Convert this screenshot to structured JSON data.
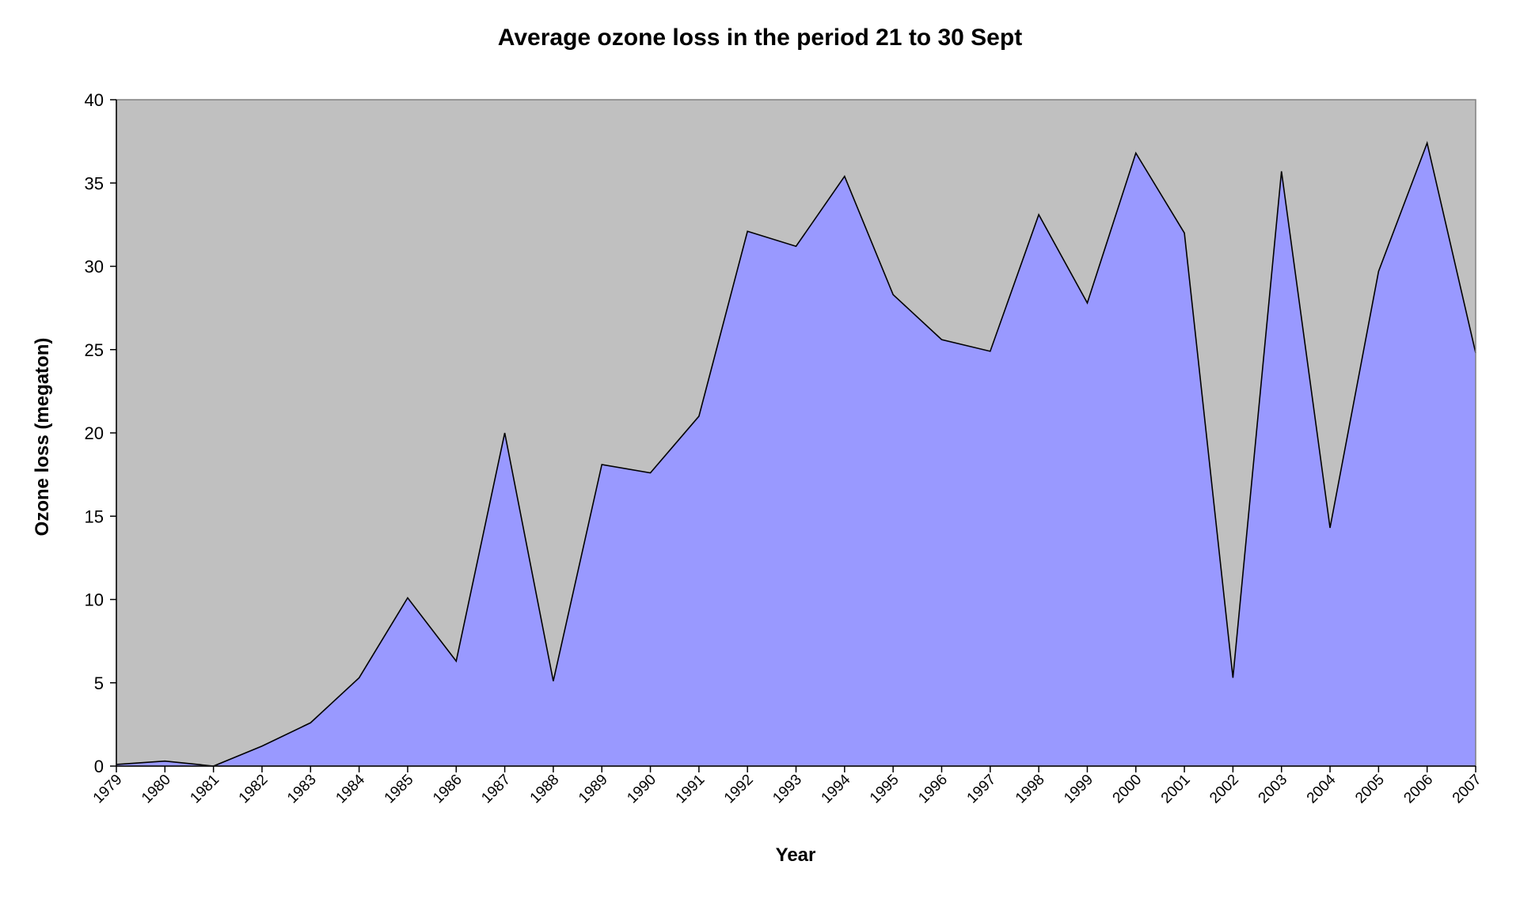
{
  "chart_data": {
    "type": "area",
    "title": "Average ozone loss in the period 21 to 30 Sept",
    "xlabel": "Year",
    "ylabel": "Ozone loss (megaton)",
    "ylim": [
      0,
      40
    ],
    "yticks": [
      0,
      5,
      10,
      15,
      20,
      25,
      30,
      35,
      40
    ],
    "grid": false,
    "legend": "none",
    "colors": {
      "area_fill": "#9999ff",
      "plot_background": "#c0c0c0",
      "line": "#000000"
    },
    "categories": [
      "1979",
      "1980",
      "1981",
      "1982",
      "1983",
      "1984",
      "1985",
      "1986",
      "1987",
      "1988",
      "1989",
      "1990",
      "1991",
      "1992",
      "1993",
      "1994",
      "1995",
      "1996",
      "1997",
      "1998",
      "1999",
      "2000",
      "2001",
      "2002",
      "2003",
      "2004",
      "2005",
      "2006",
      "2007"
    ],
    "series": [
      {
        "values": [
          0.1,
          0.3,
          0.0,
          1.2,
          2.6,
          5.3,
          10.1,
          6.3,
          20.0,
          5.1,
          18.1,
          17.6,
          21.0,
          32.1,
          31.2,
          35.4,
          28.3,
          25.6,
          24.9,
          33.1,
          27.8,
          36.8,
          32.0,
          5.3,
          35.7,
          14.3,
          29.7,
          37.4,
          24.8
        ]
      }
    ]
  }
}
